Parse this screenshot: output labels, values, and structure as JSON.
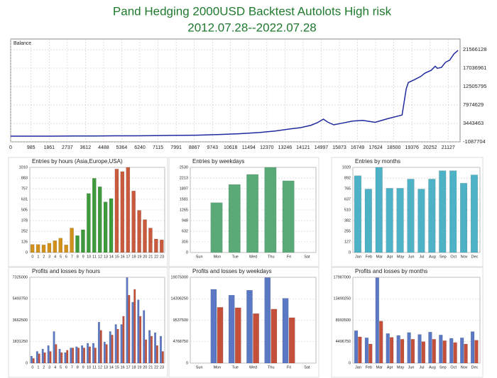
{
  "header": {
    "title": "Pand Hedging 2000USD Backtest Autolots High risk",
    "subtitle": "2012.07.28--2022.07.28"
  },
  "chart_data": [
    {
      "type": "line",
      "title": "Balance",
      "color": "#1f2a9e",
      "x": [
        0,
        1000,
        2000,
        3000,
        4000,
        5000,
        6000,
        7000,
        8000,
        9000,
        10000,
        11000,
        12000,
        12800,
        13500,
        14000,
        14500,
        14800,
        15100,
        15300,
        15600,
        16000,
        16500,
        17000,
        17600,
        18200,
        18900,
        19100,
        19200,
        19500,
        19800,
        20000,
        20300,
        20500,
        20600,
        20800,
        21000,
        21200,
        21400,
        21600
      ],
      "values": [
        300000,
        300000,
        300000,
        350000,
        350000,
        400000,
        400000,
        450000,
        500000,
        550000,
        700000,
        900000,
        1200000,
        1600000,
        2100000,
        2400000,
        3000000,
        3600000,
        4500000,
        3800000,
        3100000,
        3500000,
        4000000,
        4200000,
        3700000,
        4600000,
        5500000,
        12000000,
        13500000,
        14200000,
        15000000,
        15800000,
        16500000,
        17500000,
        17000000,
        17200000,
        18500000,
        19000000,
        20500000,
        21400000
      ],
      "xlim": [
        0,
        21700
      ],
      "xticks": [
        0,
        985,
        1861,
        2737,
        3612,
        4488,
        5364,
        6240,
        7115,
        7991,
        8867,
        9743,
        10618,
        11494,
        12370,
        13246,
        14121,
        14997,
        15873,
        16749,
        17624,
        18500,
        19376,
        20252,
        21127
      ],
      "ylim": [
        -1087704,
        24200000
      ],
      "yticks": [
        21566128,
        17036961,
        12505795,
        7974629,
        3443463,
        -1087704
      ],
      "grid": true
    },
    {
      "type": "bar",
      "title": "Entries by hours (Asia,Europe,USA)",
      "categories": [
        "0",
        "1",
        "2",
        "3",
        "4",
        "5",
        "6",
        "7",
        "8",
        "9",
        "10",
        "11",
        "12",
        "13",
        "14",
        "15",
        "16",
        "17",
        "18",
        "19",
        "20",
        "21",
        "22",
        "23"
      ],
      "values": [
        95,
        95,
        90,
        110,
        140,
        170,
        90,
        290,
        200,
        270,
        700,
        880,
        780,
        600,
        640,
        990,
        960,
        1010,
        730,
        500,
        390,
        290,
        160,
        150
      ],
      "colors": [
        "#d1901c",
        "#d1901c",
        "#d1901c",
        "#d1901c",
        "#d1901c",
        "#d1901c",
        "#d1901c",
        "#d1901c",
        "#3e9a3a",
        "#3e9a3a",
        "#3e9a3a",
        "#3e9a3a",
        "#3e9a3a",
        "#3e9a3a",
        "#3e9a3a",
        "#c95a3c",
        "#c95a3c",
        "#c95a3c",
        "#c95a3c",
        "#c95a3c",
        "#c95a3c",
        "#c95a3c",
        "#c95a3c",
        "#c95a3c"
      ],
      "ylim": [
        0,
        1010
      ],
      "yticks": [
        0,
        126,
        252,
        378,
        505,
        631,
        757,
        883,
        1010
      ],
      "grid": true
    },
    {
      "type": "bar",
      "title": "Entries by weekdays",
      "categories": [
        "Sun",
        "Mon",
        "Tue",
        "Wed",
        "Thu",
        "Fri",
        "Sat"
      ],
      "values": [
        0,
        1480,
        2020,
        2320,
        2530,
        2130,
        0
      ],
      "color": "#5aaa78",
      "ylim": [
        0,
        2530
      ],
      "yticks": [
        0,
        316,
        632,
        948,
        1265,
        1581,
        1897,
        2213,
        2530
      ],
      "grid": true
    },
    {
      "type": "bar",
      "title": "Entries by months",
      "categories": [
        "Jan",
        "Feb",
        "Mar",
        "Apr",
        "May",
        "Jun",
        "Jul",
        "Aug",
        "Sep",
        "Oct",
        "Nov",
        "Dec"
      ],
      "values": [
        920,
        760,
        1020,
        770,
        770,
        880,
        760,
        880,
        980,
        980,
        830,
        930
      ],
      "color": "#4eb2c6",
      "ylim": [
        0,
        1020
      ],
      "yticks": [
        0,
        127,
        255,
        382,
        510,
        637,
        765,
        892,
        1020
      ],
      "grid": true
    },
    {
      "type": "bar",
      "title": "Profits and losses by hours",
      "categories": [
        "0",
        "1",
        "2",
        "3",
        "4",
        "5",
        "6",
        "7",
        "8",
        "9",
        "10",
        "11",
        "12",
        "13",
        "14",
        "15",
        "16",
        "17",
        "18",
        "19",
        "20",
        "21",
        "22",
        "23"
      ],
      "series": [
        {
          "color": "#5a78c4",
          "values": [
            600000,
            1000000,
            1200000,
            1500000,
            2700000,
            1200000,
            900000,
            1300000,
            1400000,
            1500000,
            1700000,
            1700000,
            3500000,
            1800000,
            2700000,
            3300000,
            3300000,
            7300000,
            5200000,
            5400000,
            4500000,
            2800000,
            2600000,
            2300000
          ]
        },
        {
          "color": "#c4503c",
          "values": [
            400000,
            800000,
            900000,
            1000000,
            1600000,
            900000,
            1100000,
            1300000,
            1300000,
            1300000,
            1400000,
            1300000,
            2800000,
            1600000,
            2400000,
            2900000,
            4000000,
            5800000,
            6300000,
            4000000,
            2000000,
            2300000,
            1500000,
            1000000
          ]
        }
      ],
      "ylim": [
        0,
        7325000
      ],
      "yticks": [
        0,
        1831250,
        3662500,
        5493750,
        7325000
      ],
      "grid": true
    },
    {
      "type": "bar",
      "title": "Profits and losses by weekdays",
      "categories": [
        "Sun",
        "Mon",
        "Tue",
        "Wed",
        "Thu",
        "Fri",
        "Sat"
      ],
      "series": [
        {
          "color": "#5a78c4",
          "values": [
            0,
            16400000,
            15100000,
            16200000,
            19000000,
            14400000,
            0
          ]
        },
        {
          "color": "#c4503c",
          "values": [
            0,
            12400000,
            12300000,
            11000000,
            12000000,
            10100000,
            0
          ]
        }
      ],
      "ylim": [
        0,
        19075000
      ],
      "yticks": [
        0,
        4768750,
        9537500,
        14306250,
        19075000
      ],
      "grid": true
    },
    {
      "type": "bar",
      "title": "Profits and losses by months",
      "categories": [
        "Jan",
        "Feb",
        "Mar",
        "Apr",
        "May",
        "Jun",
        "Jul",
        "Aug",
        "Sep",
        "Oct",
        "Nov",
        "Dec"
      ],
      "series": [
        {
          "color": "#5a78c4",
          "values": [
            6800000,
            5300000,
            17900000,
            6200000,
            5800000,
            6400000,
            6000000,
            6500000,
            5900000,
            5200000,
            5300000,
            6600000
          ]
        },
        {
          "color": "#c4503c",
          "values": [
            5500000,
            4000000,
            8800000,
            5400000,
            5000000,
            5000000,
            4500000,
            5000000,
            4700000,
            4300000,
            4000000,
            4800000
          ]
        }
      ],
      "ylim": [
        0,
        17987000
      ],
      "yticks": [
        0,
        4496750,
        8993500,
        13490250,
        17987000
      ],
      "grid": true
    }
  ]
}
